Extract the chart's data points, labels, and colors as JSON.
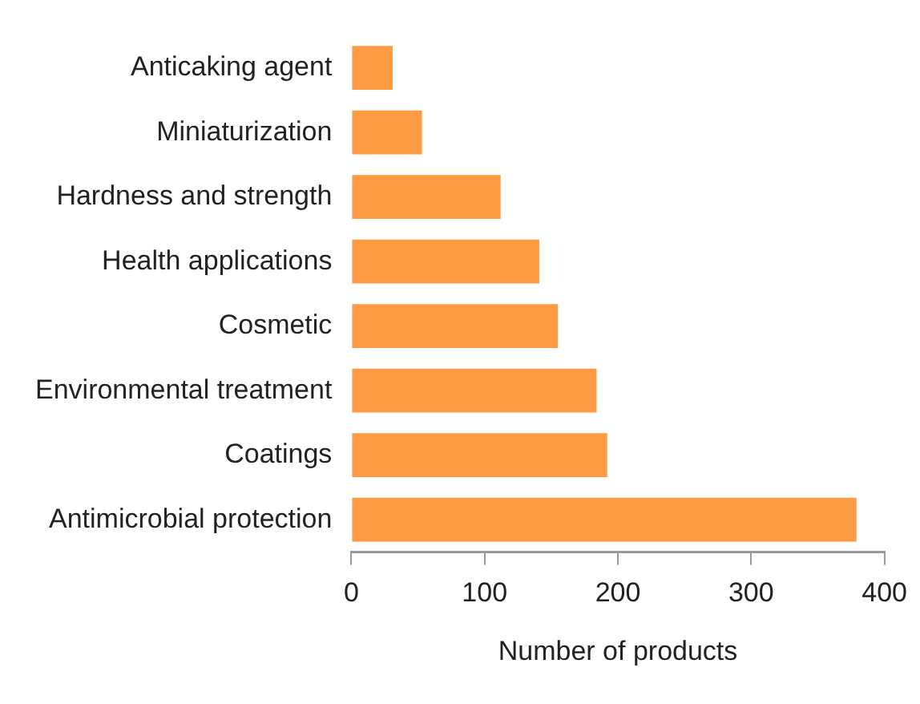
{
  "chart_data": {
    "type": "bar",
    "orientation": "horizontal",
    "xlabel": "Number of products",
    "categories": [
      "Anticaking agent",
      "Miniaturization",
      "Hardness and strength",
      "Health applications",
      "Cosmetic",
      "Environmental treatment",
      "Coatings",
      "Antimicrobial protection"
    ],
    "values": [
      31,
      53,
      112,
      141,
      155,
      184,
      192,
      379
    ],
    "color": "#fd9a43",
    "xlim": [
      0,
      400
    ],
    "xticks": [
      0,
      100,
      200,
      300,
      400
    ],
    "grid": false,
    "legend": false
  }
}
